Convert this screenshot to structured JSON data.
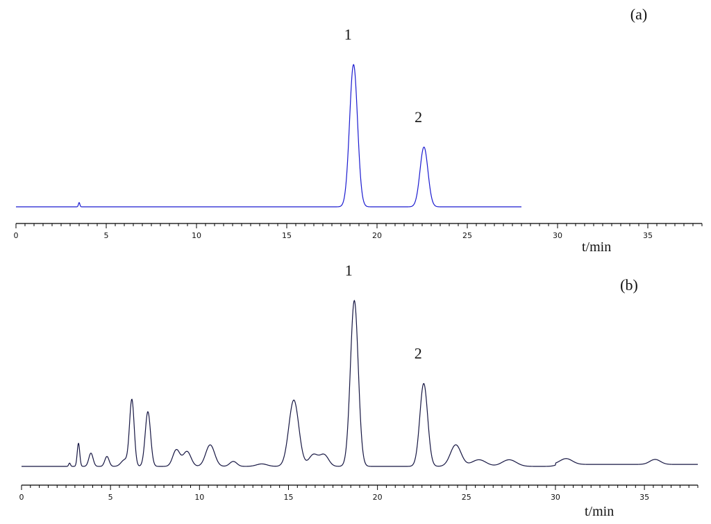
{
  "chart_data": [
    {
      "type": "line",
      "panel_label": "(a)",
      "xlabel": "t/min",
      "xlim": [
        0,
        38
      ],
      "x_ticks": [
        0,
        5,
        10,
        15,
        20,
        25,
        30,
        35
      ],
      "x_tick_labels": [
        "0",
        "5",
        "10",
        "15",
        "20",
        "25",
        "30",
        "35"
      ],
      "signal_end_time": 28,
      "baseline": 0.02,
      "peaks": [
        {
          "label": "1",
          "t": 18.7,
          "height": 1.0,
          "width": 0.22
        },
        {
          "label": "2",
          "t": 22.6,
          "height": 0.42,
          "width": 0.22
        }
      ],
      "minor_peaks": [
        {
          "t": 3.5,
          "height": 0.03,
          "width": 0.04
        }
      ],
      "line_color": "#1a1ad0"
    },
    {
      "type": "line",
      "panel_label": "(b)",
      "xlabel": "t/min",
      "xlim": [
        0,
        38
      ],
      "x_ticks": [
        0,
        5,
        10,
        15,
        20,
        25,
        30,
        35
      ],
      "x_tick_labels": [
        "0",
        "5",
        "10",
        "15",
        "20",
        "25",
        "30",
        "35"
      ],
      "signal_end_time": 38,
      "baseline": 0.0,
      "peaks": [
        {
          "label": "1",
          "t": 18.7,
          "height": 1.0,
          "width": 0.22
        },
        {
          "label": "2",
          "t": 22.6,
          "height": 0.5,
          "width": 0.22
        }
      ],
      "minor_peaks": [
        {
          "t": 2.7,
          "height": 0.02,
          "width": 0.05
        },
        {
          "t": 3.2,
          "height": 0.14,
          "width": 0.07
        },
        {
          "t": 3.9,
          "height": 0.08,
          "width": 0.12
        },
        {
          "t": 4.8,
          "height": 0.06,
          "width": 0.12
        },
        {
          "t": 5.8,
          "height": 0.04,
          "width": 0.2
        },
        {
          "t": 6.2,
          "height": 0.4,
          "width": 0.13
        },
        {
          "t": 7.1,
          "height": 0.33,
          "width": 0.15
        },
        {
          "t": 8.7,
          "height": 0.1,
          "width": 0.2
        },
        {
          "t": 9.3,
          "height": 0.09,
          "width": 0.22
        },
        {
          "t": 10.6,
          "height": 0.13,
          "width": 0.25
        },
        {
          "t": 11.9,
          "height": 0.03,
          "width": 0.2
        },
        {
          "t": 13.5,
          "height": 0.015,
          "width": 0.3
        },
        {
          "t": 15.3,
          "height": 0.4,
          "width": 0.28
        },
        {
          "t": 16.4,
          "height": 0.07,
          "width": 0.25
        },
        {
          "t": 17.0,
          "height": 0.07,
          "width": 0.25
        },
        {
          "t": 24.4,
          "height": 0.13,
          "width": 0.3
        },
        {
          "t": 25.7,
          "height": 0.04,
          "width": 0.4
        },
        {
          "t": 27.4,
          "height": 0.04,
          "width": 0.4
        },
        {
          "t": 30.6,
          "height": 0.035,
          "width": 0.35
        },
        {
          "t": 35.6,
          "height": 0.03,
          "width": 0.3
        }
      ],
      "line_color": "#151542"
    }
  ]
}
